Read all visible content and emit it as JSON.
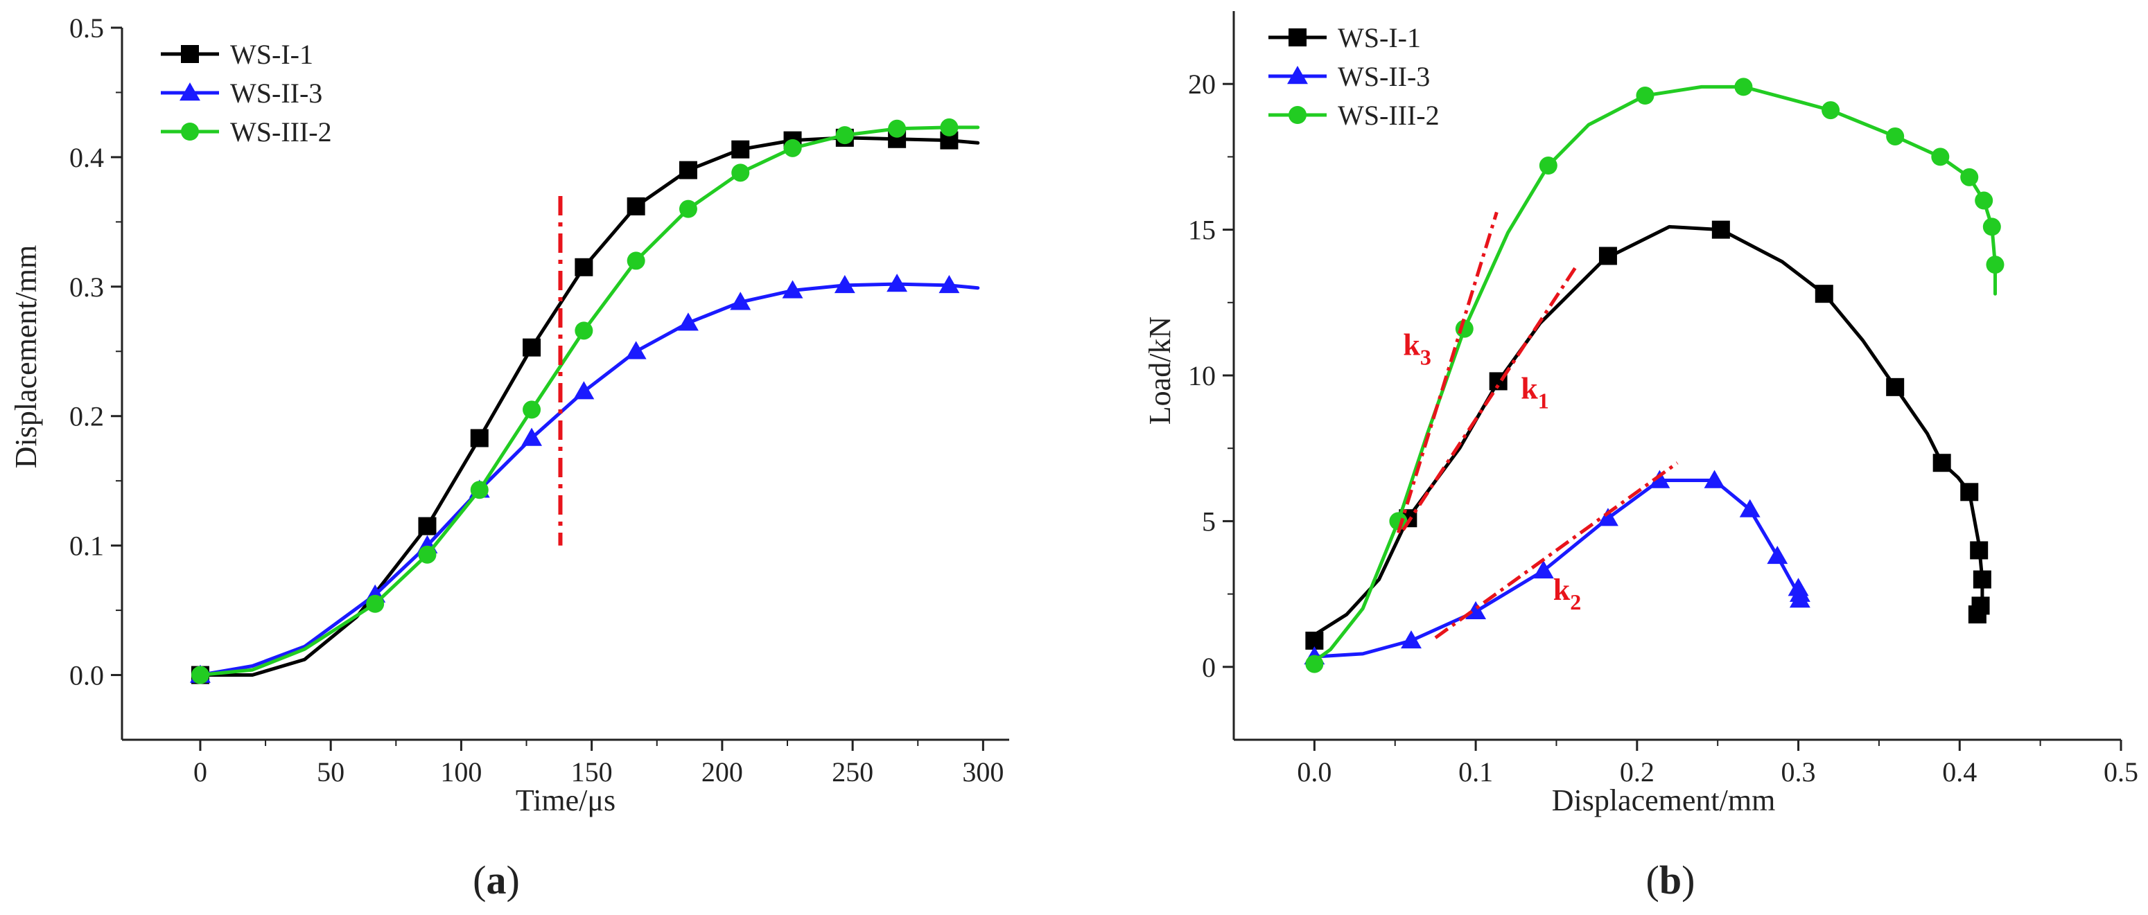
{
  "chart_data": [
    {
      "type": "line",
      "panel": "a",
      "caption": "(a)",
      "caption_letter": "a",
      "xlabel": "Time/μs",
      "ylabel": "Displacement/mm",
      "xlim": [
        -30,
        310
      ],
      "ylim": [
        -0.05,
        0.5
      ],
      "xticks": [
        0,
        50,
        100,
        150,
        200,
        250,
        300
      ],
      "yticks": [
        0.0,
        0.1,
        0.2,
        0.3,
        0.4,
        0.5
      ],
      "ytick_labels": [
        "0.0",
        "0.1",
        "0.2",
        "0.3",
        "0.4",
        "0.5"
      ],
      "series": [
        {
          "name": "WS-I-1",
          "color": "#000000",
          "marker": "square",
          "curve": [
            [
              0,
              0
            ],
            [
              20,
              0.0
            ],
            [
              40,
              0.012
            ],
            [
              60,
              0.045
            ],
            [
              87,
              0.115
            ],
            [
              107,
              0.183
            ],
            [
              127,
              0.253
            ],
            [
              147,
              0.315
            ],
            [
              167,
              0.362
            ],
            [
              187,
              0.39
            ],
            [
              207,
              0.406
            ],
            [
              227,
              0.413
            ],
            [
              247,
              0.415
            ],
            [
              267,
              0.414
            ],
            [
              287,
              0.413
            ],
            [
              298,
              0.411
            ]
          ],
          "markers": [
            [
              0,
              0
            ],
            [
              87,
              0.115
            ],
            [
              107,
              0.183
            ],
            [
              127,
              0.253
            ],
            [
              147,
              0.315
            ],
            [
              167,
              0.362
            ],
            [
              187,
              0.39
            ],
            [
              207,
              0.406
            ],
            [
              227,
              0.413
            ],
            [
              247,
              0.415
            ],
            [
              267,
              0.414
            ],
            [
              287,
              0.413
            ]
          ]
        },
        {
          "name": "WS-II-3",
          "color": "#1a1aff",
          "marker": "triangle",
          "curve": [
            [
              0,
              0
            ],
            [
              20,
              0.007
            ],
            [
              40,
              0.022
            ],
            [
              67,
              0.062
            ],
            [
              87,
              0.1
            ],
            [
              107,
              0.143
            ],
            [
              127,
              0.183
            ],
            [
              147,
              0.219
            ],
            [
              167,
              0.25
            ],
            [
              187,
              0.272
            ],
            [
              207,
              0.288
            ],
            [
              227,
              0.297
            ],
            [
              247,
              0.301
            ],
            [
              267,
              0.302
            ],
            [
              287,
              0.301
            ],
            [
              298,
              0.299
            ]
          ],
          "markers": [
            [
              0,
              0
            ],
            [
              67,
              0.062
            ],
            [
              87,
              0.1
            ],
            [
              107,
              0.143
            ],
            [
              127,
              0.183
            ],
            [
              147,
              0.219
            ],
            [
              167,
              0.25
            ],
            [
              187,
              0.272
            ],
            [
              207,
              0.288
            ],
            [
              227,
              0.297
            ],
            [
              247,
              0.301
            ],
            [
              267,
              0.302
            ],
            [
              287,
              0.301
            ]
          ]
        },
        {
          "name": "WS-III-2",
          "color": "#22cc22",
          "marker": "circle",
          "curve": [
            [
              0,
              0
            ],
            [
              20,
              0.004
            ],
            [
              40,
              0.02
            ],
            [
              67,
              0.055
            ],
            [
              87,
              0.093
            ],
            [
              107,
              0.143
            ],
            [
              127,
              0.205
            ],
            [
              147,
              0.266
            ],
            [
              167,
              0.32
            ],
            [
              187,
              0.36
            ],
            [
              207,
              0.388
            ],
            [
              227,
              0.407
            ],
            [
              247,
              0.417
            ],
            [
              267,
              0.422
            ],
            [
              287,
              0.423
            ],
            [
              298,
              0.423
            ]
          ],
          "markers": [
            [
              0,
              0
            ],
            [
              67,
              0.055
            ],
            [
              87,
              0.093
            ],
            [
              107,
              0.143
            ],
            [
              127,
              0.205
            ],
            [
              147,
              0.266
            ],
            [
              167,
              0.32
            ],
            [
              187,
              0.36
            ],
            [
              207,
              0.388
            ],
            [
              227,
              0.407
            ],
            [
              247,
              0.417
            ],
            [
              267,
              0.422
            ],
            [
              287,
              0.423
            ]
          ]
        }
      ],
      "annotations": [
        {
          "kind": "vertical-dashdot",
          "x": 138,
          "y_from": 0.1,
          "y_to": 0.37,
          "color": "#e8141b"
        }
      ],
      "legend_position": "top-left"
    },
    {
      "type": "line",
      "panel": "b",
      "caption": "(b)",
      "caption_letter": "b",
      "xlabel": "Displacement/mm",
      "ylabel": "Load/kN",
      "xlim": [
        -0.05,
        0.5
      ],
      "ylim": [
        -2.5,
        22.5
      ],
      "xticks": [
        0.0,
        0.1,
        0.2,
        0.3,
        0.4,
        0.5
      ],
      "xtick_labels": [
        "0.0",
        "0.1",
        "0.2",
        "0.3",
        "0.4",
        "0.5"
      ],
      "yticks": [
        0,
        5,
        10,
        15,
        20
      ],
      "series": [
        {
          "name": "WS-I-1",
          "color": "#000000",
          "marker": "square",
          "curve": [
            [
              0,
              1.1
            ],
            [
              0.02,
              1.8
            ],
            [
              0.04,
              3.0
            ],
            [
              0.058,
              5.1
            ],
            [
              0.09,
              7.5
            ],
            [
              0.114,
              9.8
            ],
            [
              0.14,
              11.8
            ],
            [
              0.18,
              14.0
            ],
            [
              0.22,
              15.1
            ],
            [
              0.252,
              15.0
            ],
            [
              0.29,
              13.9
            ],
            [
              0.316,
              12.8
            ],
            [
              0.34,
              11.2
            ],
            [
              0.36,
              9.6
            ],
            [
              0.38,
              8.0
            ],
            [
              0.389,
              7.0
            ],
            [
              0.399,
              6.5
            ],
            [
              0.406,
              6.0
            ],
            [
              0.412,
              4.2
            ],
            [
              0.414,
              3.0
            ],
            [
              0.414,
              2.2
            ],
            [
              0.413,
              1.9
            ],
            [
              0.411,
              1.7
            ]
          ],
          "markers": [
            [
              0,
              0.9
            ],
            [
              0.058,
              5.1
            ],
            [
              0.114,
              9.8
            ],
            [
              0.182,
              14.1
            ],
            [
              0.252,
              15.0
            ],
            [
              0.316,
              12.8
            ],
            [
              0.36,
              9.6
            ],
            [
              0.389,
              7.0
            ],
            [
              0.406,
              6.0
            ],
            [
              0.412,
              4.0
            ],
            [
              0.414,
              3.0
            ],
            [
              0.413,
              2.1
            ],
            [
              0.411,
              1.8
            ]
          ]
        },
        {
          "name": "WS-II-3",
          "color": "#1a1aff",
          "marker": "triangle",
          "curve": [
            [
              0,
              0.35
            ],
            [
              0.03,
              0.45
            ],
            [
              0.06,
              0.9
            ],
            [
              0.1,
              1.9
            ],
            [
              0.142,
              3.3
            ],
            [
              0.182,
              5.1
            ],
            [
              0.214,
              6.4
            ],
            [
              0.248,
              6.4
            ],
            [
              0.27,
              5.4
            ],
            [
              0.287,
              3.8
            ],
            [
              0.296,
              2.9
            ],
            [
              0.3,
              2.5
            ],
            [
              0.302,
              2.3
            ]
          ],
          "markers": [
            [
              0,
              0.35
            ],
            [
              0.06,
              0.9
            ],
            [
              0.1,
              1.9
            ],
            [
              0.142,
              3.3
            ],
            [
              0.182,
              5.1
            ],
            [
              0.214,
              6.4
            ],
            [
              0.248,
              6.4
            ],
            [
              0.27,
              5.4
            ],
            [
              0.287,
              3.8
            ],
            [
              0.3,
              2.7
            ],
            [
              0.301,
              2.5
            ],
            [
              0.301,
              2.3
            ]
          ]
        },
        {
          "name": "WS-III-2",
          "color": "#22cc22",
          "marker": "circle",
          "curve": [
            [
              0,
              0.2
            ],
            [
              0.01,
              0.6
            ],
            [
              0.03,
              2.0
            ],
            [
              0.052,
              5.0
            ],
            [
              0.07,
              8.0
            ],
            [
              0.093,
              11.6
            ],
            [
              0.12,
              14.9
            ],
            [
              0.145,
              17.2
            ],
            [
              0.17,
              18.6
            ],
            [
              0.205,
              19.6
            ],
            [
              0.24,
              19.9
            ],
            [
              0.266,
              19.9
            ],
            [
              0.3,
              19.4
            ],
            [
              0.32,
              19.1
            ],
            [
              0.36,
              18.2
            ],
            [
              0.388,
              17.5
            ],
            [
              0.406,
              16.8
            ],
            [
              0.415,
              16.0
            ],
            [
              0.42,
              15.1
            ],
            [
              0.422,
              13.8
            ],
            [
              0.422,
              12.8
            ]
          ],
          "markers": [
            [
              0,
              0.1
            ],
            [
              0.052,
              5.0
            ],
            [
              0.093,
              11.6
            ],
            [
              0.145,
              17.2
            ],
            [
              0.205,
              19.6
            ],
            [
              0.266,
              19.9
            ],
            [
              0.32,
              19.1
            ],
            [
              0.36,
              18.2
            ],
            [
              0.388,
              17.5
            ],
            [
              0.406,
              16.8
            ],
            [
              0.415,
              16.0
            ],
            [
              0.42,
              15.1
            ],
            [
              0.422,
              13.8
            ]
          ]
        }
      ],
      "annotations": [
        {
          "kind": "tangent",
          "label": "k",
          "sub": "1",
          "from": [
            0.055,
            4.7
          ],
          "to": [
            0.163,
            13.8
          ],
          "label_at": [
            0.128,
            9.2
          ],
          "color": "#e8141b"
        },
        {
          "kind": "tangent",
          "label": "k",
          "sub": "2",
          "from": [
            0.075,
            1.0
          ],
          "to": [
            0.225,
            7.0
          ],
          "label_at": [
            0.148,
            2.3
          ],
          "color": "#e8141b"
        },
        {
          "kind": "tangent",
          "label": "k",
          "sub": "3",
          "from": [
            0.052,
            4.6
          ],
          "to": [
            0.113,
            15.6
          ],
          "label_at": [
            0.055,
            10.7
          ],
          "color": "#e8141b"
        }
      ],
      "legend_position": "top-left"
    }
  ]
}
